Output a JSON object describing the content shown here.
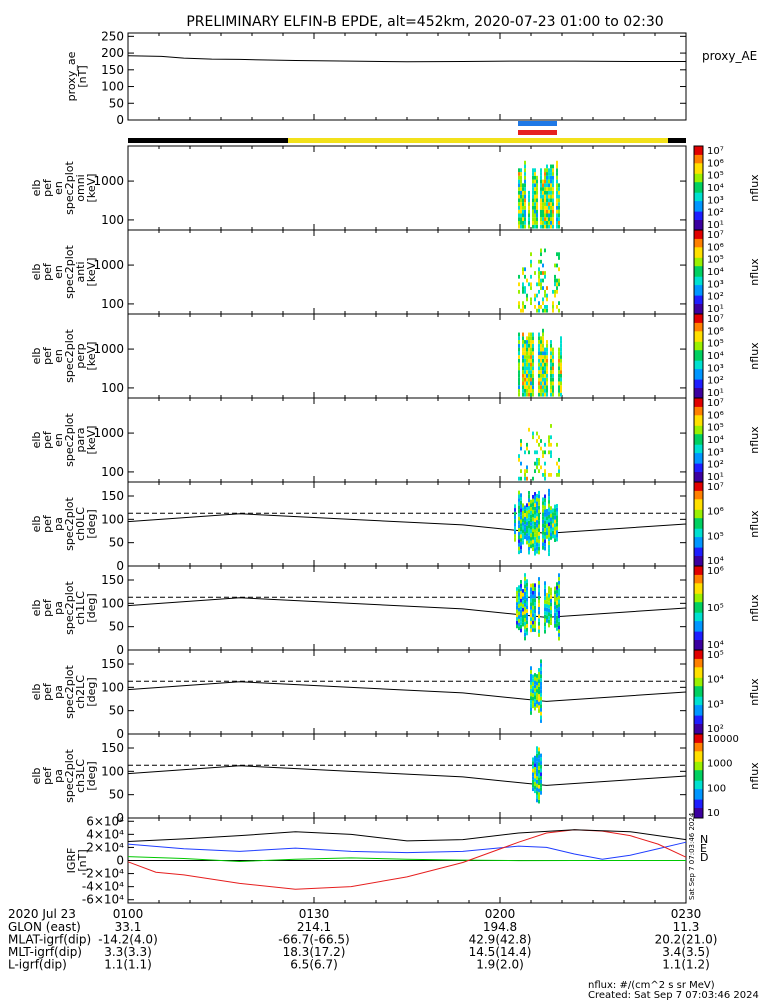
{
  "title": "PRELIMINARY ELFIN-B EPDE, alt=452km, 2020-07-23 01:00 to 02:30",
  "colors": {
    "night": "#000000",
    "sunlit": "#f2e11a",
    "science_blue": "#1e78e6",
    "science_red": "#e6201e",
    "line": "#000000"
  },
  "chart_data": [
    {
      "type": "line",
      "name": "proxy_ae",
      "legend": "proxy_AE",
      "ylabel": [
        "proxy_ae",
        "[nT]"
      ],
      "ylim": [
        0,
        260
      ],
      "yticks": [
        0,
        50,
        100,
        150,
        200,
        250
      ],
      "x": [
        0,
        0.06,
        0.1,
        0.15,
        0.2,
        0.3,
        0.4,
        0.5,
        0.6,
        0.7,
        0.8,
        0.9,
        1.0
      ],
      "values": [
        192,
        190,
        185,
        182,
        181,
        178,
        176,
        174,
        175,
        176,
        176,
        175,
        175
      ]
    },
    {
      "type": "heatmap",
      "name": "elb_pef_en_spec2plot_omni",
      "ylabel": [
        "elb",
        "pef",
        "en",
        "spec2plot",
        "omni",
        "[keV]"
      ],
      "yscale": "log",
      "ylim": [
        55,
        8000
      ],
      "yticks": [
        100,
        1000
      ],
      "colorbar": {
        "label": "nflux",
        "ticks": [
          "10¹",
          "10²",
          "10³",
          "10⁴",
          "10⁵",
          "10⁶",
          "10⁷"
        ]
      }
    },
    {
      "type": "heatmap",
      "name": "elb_pef_en_spec2plot_anti",
      "ylabel": [
        "elb",
        "pef",
        "en",
        "spec2plot",
        "anti",
        "[keV]"
      ],
      "yscale": "log",
      "ylim": [
        55,
        8000
      ],
      "yticks": [
        100,
        1000
      ],
      "colorbar": {
        "label": "nflux",
        "ticks": [
          "10¹",
          "10²",
          "10³",
          "10⁴",
          "10⁵",
          "10⁶",
          "10⁷"
        ]
      }
    },
    {
      "type": "heatmap",
      "name": "elb_pef_en_spec2plot_perp",
      "ylabel": [
        "elb",
        "pef",
        "en",
        "spec2plot",
        "perp",
        "[keV]"
      ],
      "yscale": "log",
      "ylim": [
        55,
        8000
      ],
      "yticks": [
        100,
        1000
      ],
      "colorbar": {
        "label": "nflux",
        "ticks": [
          "10¹",
          "10²",
          "10³",
          "10⁴",
          "10⁵",
          "10⁶",
          "10⁷"
        ]
      }
    },
    {
      "type": "heatmap",
      "name": "elb_pef_en_spec2plot_para",
      "ylabel": [
        "elb",
        "pef",
        "en",
        "spec2plot",
        "para",
        "[keV]"
      ],
      "yscale": "log",
      "ylim": [
        55,
        8000
      ],
      "yticks": [
        100,
        1000
      ],
      "colorbar": {
        "label": "nflux",
        "ticks": [
          "10¹",
          "10²",
          "10³",
          "10⁴",
          "10⁵",
          "10⁶",
          "10⁷"
        ]
      }
    },
    {
      "type": "heatmap",
      "name": "elb_pef_pa_spec2plot_ch0LC",
      "ylabel": [
        "elb",
        "pef",
        "pa",
        "spec2plot",
        "ch0LC",
        "[deg]"
      ],
      "ylim": [
        0,
        180
      ],
      "yticks": [
        0,
        50,
        100,
        150
      ],
      "colorbar": {
        "label": "nflux",
        "ticks": [
          "10⁴",
          "10⁵",
          "10⁶",
          "10⁷"
        ]
      }
    },
    {
      "type": "heatmap",
      "name": "elb_pef_pa_spec2plot_ch1LC",
      "ylabel": [
        "elb",
        "pef",
        "pa",
        "spec2plot",
        "ch1LC",
        "[deg]"
      ],
      "ylim": [
        0,
        180
      ],
      "yticks": [
        0,
        50,
        100,
        150
      ],
      "colorbar": {
        "label": "nflux",
        "ticks": [
          "10⁴",
          "10⁵",
          "10⁶"
        ]
      }
    },
    {
      "type": "heatmap",
      "name": "elb_pef_pa_spec2plot_ch2LC",
      "ylabel": [
        "elb",
        "pef",
        "pa",
        "spec2plot",
        "ch2LC",
        "[deg]"
      ],
      "ylim": [
        0,
        180
      ],
      "yticks": [
        0,
        50,
        100,
        150
      ],
      "colorbar": {
        "label": "nflux",
        "ticks": [
          "10²",
          "10³",
          "10⁴",
          "10⁵"
        ]
      }
    },
    {
      "type": "heatmap",
      "name": "elb_pef_pa_spec2plot_ch3LC",
      "ylabel": [
        "elb",
        "pef",
        "pa",
        "spec2plot",
        "ch3LC",
        "[deg]"
      ],
      "ylim": [
        0,
        180
      ],
      "yticks": [
        0,
        50,
        100,
        150
      ],
      "colorbar": {
        "label": "nflux",
        "ticks": [
          "10",
          "100",
          "1000",
          "10000"
        ]
      }
    },
    {
      "type": "line",
      "name": "IGRF",
      "ylabel": [
        "IGRF",
        "[nT]"
      ],
      "ylim": [
        -65000,
        65000
      ],
      "yticks": [
        "-6×10⁴",
        "-4×10⁴",
        "-2×10⁴",
        "0",
        "2×10⁴",
        "4×10⁴",
        "6×10⁴"
      ],
      "legend": [
        "N",
        "E",
        "D"
      ],
      "series": [
        {
          "name": "N",
          "color": "#1e3cff",
          "x": [
            0,
            0.1,
            0.2,
            0.3,
            0.4,
            0.5,
            0.6,
            0.7,
            0.75,
            0.8,
            0.85,
            0.9,
            0.95,
            1.0
          ],
          "values": [
            25000,
            18000,
            14000,
            19000,
            14000,
            12000,
            14000,
            22000,
            20000,
            10000,
            2000,
            8000,
            18000,
            28000
          ]
        },
        {
          "name": "E",
          "color": "#00c800",
          "x": [
            0,
            0.1,
            0.2,
            0.3,
            0.4,
            0.5,
            0.6,
            0.7,
            0.8,
            0.9,
            1.0
          ],
          "values": [
            6000,
            3000,
            -1500,
            2000,
            4000,
            2000,
            500,
            -200,
            0,
            0,
            0
          ]
        },
        {
          "name": "D",
          "color": "#e61e1e",
          "x": [
            0,
            0.05,
            0.1,
            0.2,
            0.3,
            0.4,
            0.5,
            0.6,
            0.7,
            0.75,
            0.8,
            0.85,
            0.9,
            0.95,
            1.0
          ],
          "values": [
            -2000,
            -18000,
            -22000,
            -35000,
            -44000,
            -40000,
            -25000,
            -3000,
            28000,
            42000,
            47000,
            45000,
            38000,
            25000,
            5000
          ]
        },
        {
          "name": "total",
          "color": "#000000",
          "x": [
            0,
            0.1,
            0.2,
            0.3,
            0.4,
            0.5,
            0.6,
            0.7,
            0.8,
            0.9,
            1.0
          ],
          "values": [
            29000,
            33000,
            38000,
            44000,
            40000,
            30000,
            32000,
            42000,
            47000,
            44000,
            32000
          ]
        }
      ]
    }
  ],
  "orbit_table": {
    "times": [
      "2020 Jul 23",
      "0100",
      "0130",
      "0200",
      "0230"
    ],
    "rows": [
      {
        "label": "GLON (east)",
        "values": [
          "33.1",
          "214.1",
          "194.8",
          "11.3"
        ]
      },
      {
        "label": "MLAT-igrf(dip)",
        "values": [
          "-14.2(4.0)",
          "-66.7(-66.5)",
          "42.9(42.8)",
          "20.2(21.0)"
        ]
      },
      {
        "label": "MLT-igrf(dip)",
        "values": [
          "3.3(3.3)",
          "18.3(17.2)",
          "14.5(14.4)",
          "3.4(3.5)"
        ]
      },
      {
        "label": "L-igrf(dip)",
        "values": [
          "1.1(1.1)",
          "6.5(6.7)",
          "1.9(2.0)",
          "1.1(1.2)"
        ]
      }
    ]
  },
  "footer": {
    "units": "nflux: #/(cm^2 s sr MeV)",
    "created": "Created: Sat Sep  7 07:03:46 2024",
    "side_stamp": "Sat Sep  7 07:03:46 2024"
  }
}
